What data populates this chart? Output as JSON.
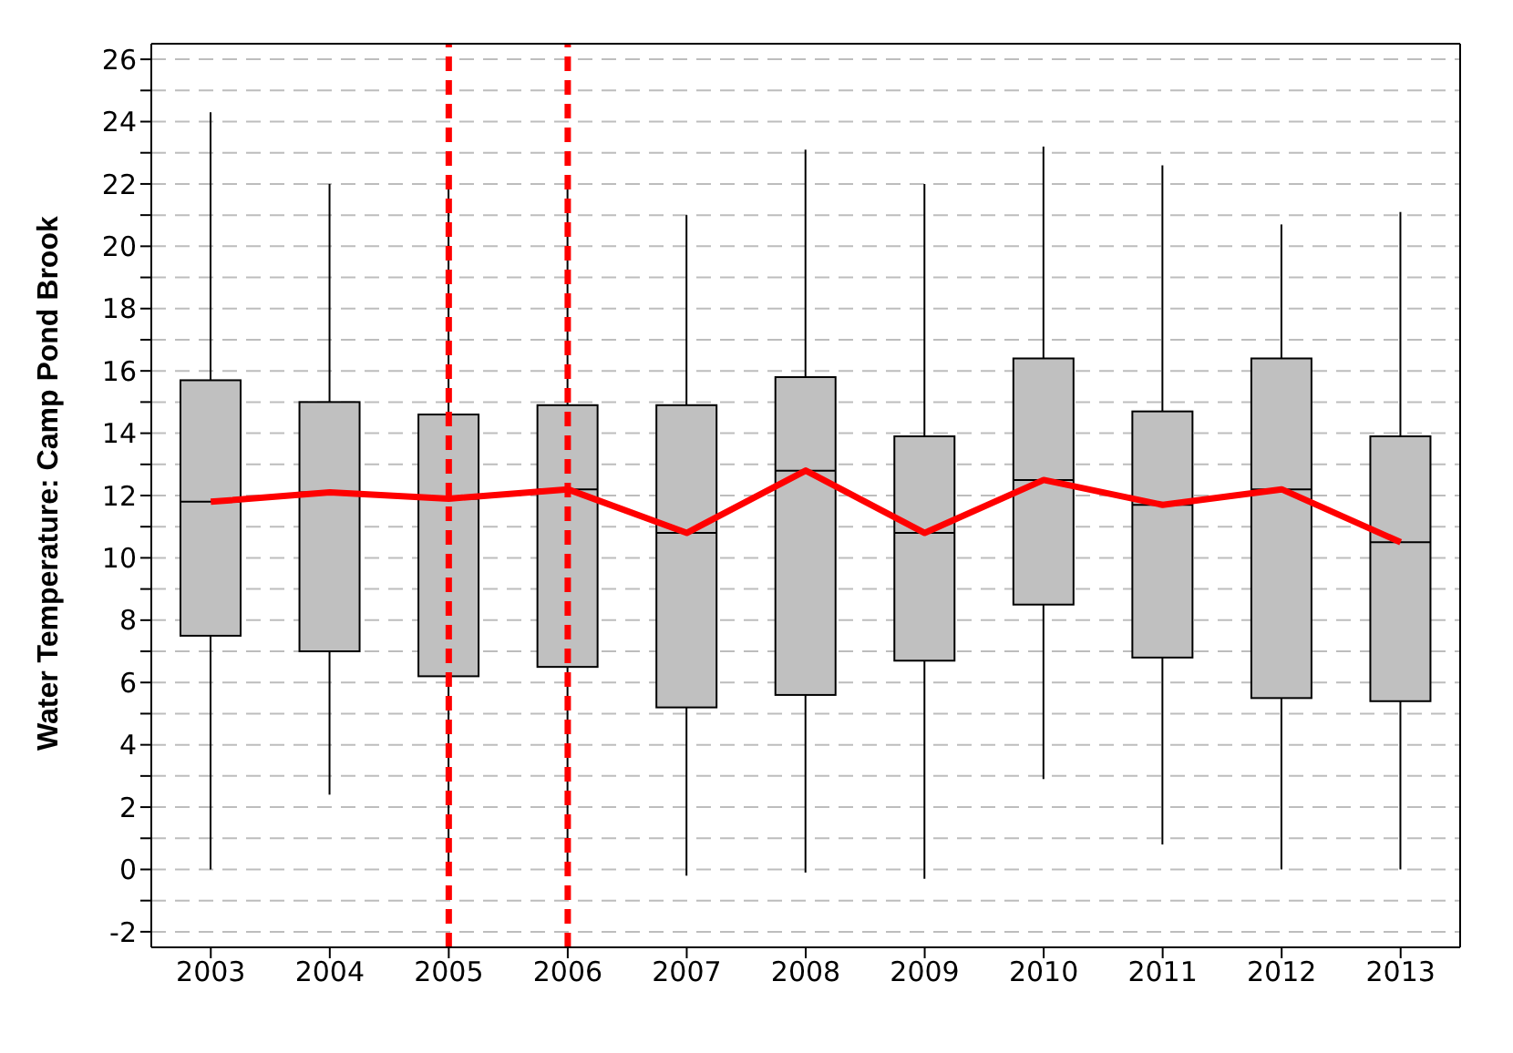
{
  "chart_data": {
    "type": "box",
    "ylabel": "Water Temperature: Camp Pond Brook",
    "categories": [
      "2003",
      "2004",
      "2005",
      "2006",
      "2007",
      "2008",
      "2009",
      "2010",
      "2011",
      "2012",
      "2013"
    ],
    "boxes": [
      {
        "low": 0,
        "q1": 7.5,
        "median": 11.8,
        "q3": 15.7,
        "high": 24.3
      },
      {
        "low": 2.4,
        "q1": 7,
        "median": 12.1,
        "q3": 15,
        "high": 22
      },
      {
        "low": 0,
        "q1": 6.2,
        "median": 11.9,
        "q3": 14.6,
        "high": 22.1
      },
      {
        "low": -0.2,
        "q1": 6.5,
        "median": 12.2,
        "q3": 14.9,
        "high": 22.1
      },
      {
        "low": -0.2,
        "q1": 5.2,
        "median": 10.8,
        "q3": 14.9,
        "high": 21
      },
      {
        "low": -0.1,
        "q1": 5.6,
        "median": 12.8,
        "q3": 15.8,
        "high": 23.1
      },
      {
        "low": -0.3,
        "q1": 6.7,
        "median": 10.8,
        "q3": 13.9,
        "high": 22
      },
      {
        "low": 2.9,
        "q1": 8.5,
        "median": 12.5,
        "q3": 16.4,
        "high": 23.2
      },
      {
        "low": 0.8,
        "q1": 6.8,
        "median": 11.7,
        "q3": 14.7,
        "high": 22.6
      },
      {
        "low": 0,
        "q1": 5.5,
        "median": 12.2,
        "q3": 16.4,
        "high": 20.7
      },
      {
        "low": 0,
        "q1": 5.4,
        "median": 10.5,
        "q3": 13.9,
        "high": 21.1
      }
    ],
    "series": [
      {
        "type": "line",
        "color": "#ff0000",
        "values": [
          11.8,
          12.1,
          11.9,
          12.2,
          10.8,
          12.8,
          10.8,
          12.5,
          11.7,
          12.2,
          10.5
        ]
      }
    ],
    "ylim": [
      -2.5,
      26.5
    ],
    "yticks": [
      -2,
      {
        "value": -1,
        "label": null
      },
      0,
      {
        "value": 1,
        "label": null
      },
      2,
      {
        "value": 3,
        "label": null
      },
      4,
      {
        "value": 5,
        "label": null
      },
      6,
      {
        "value": 7,
        "label": null
      },
      8,
      {
        "value": 9,
        "label": null
      },
      10,
      {
        "value": 11,
        "label": null
      },
      12,
      {
        "value": 13,
        "label": null
      },
      14,
      {
        "value": 15,
        "label": null
      },
      16,
      {
        "value": 17,
        "label": null
      },
      18,
      {
        "value": 19,
        "label": null
      },
      20,
      {
        "value": 21,
        "label": null
      },
      22,
      {
        "value": 23,
        "label": null
      },
      24,
      {
        "value": 25,
        "label": null
      },
      26
    ],
    "grid": "y",
    "marker": "none",
    "ref_lines": [
      {
        "axis": "x",
        "value": "2005",
        "color": "#ff0000",
        "line_style": "dashed"
      },
      {
        "axis": "x",
        "value": "2006",
        "color": "#ff0000",
        "line_style": "dashed"
      }
    ]
  }
}
